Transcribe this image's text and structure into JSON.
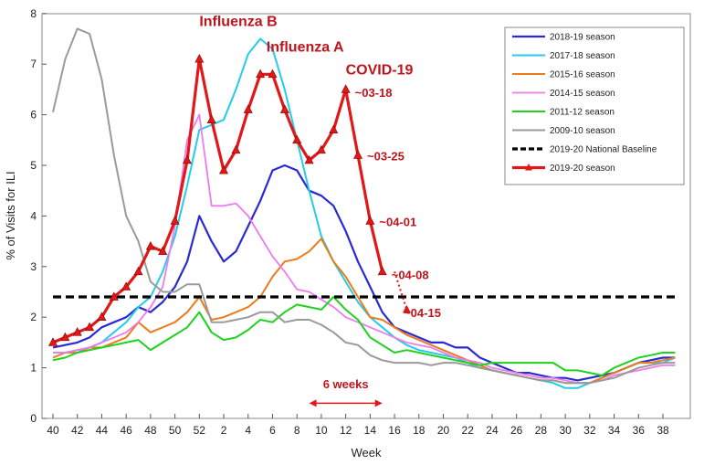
{
  "chart_data": {
    "type": "line",
    "xlabel": "Week",
    "ylabel": "% of Visits for ILI",
    "ylim": [
      0,
      8
    ],
    "y_ticks": [
      "0",
      "1",
      "2",
      "3",
      "4",
      "5",
      "6",
      "7",
      "8"
    ],
    "x_tick_labels": [
      "40",
      "42",
      "44",
      "46",
      "48",
      "50",
      "52",
      "2",
      "4",
      "6",
      "8",
      "10",
      "12",
      "14",
      "16",
      "18",
      "20",
      "22",
      "24",
      "26",
      "28",
      "30",
      "32",
      "34",
      "36",
      "38"
    ],
    "x_categories": [
      40,
      41,
      42,
      43,
      44,
      45,
      46,
      47,
      48,
      49,
      50,
      51,
      52,
      1,
      2,
      3,
      4,
      5,
      6,
      7,
      8,
      9,
      10,
      11,
      12,
      13,
      14,
      15,
      16,
      17,
      18,
      19,
      20,
      21,
      22,
      23,
      24,
      25,
      26,
      27,
      28,
      29,
      30,
      31,
      32,
      33,
      34,
      35,
      36,
      37,
      38,
      39
    ],
    "legend_position": "top-right",
    "grid": false,
    "series": [
      {
        "name": "2018-19 season",
        "color": "#2a2ad2",
        "width": 2.2,
        "dash": "",
        "marker": "none",
        "values": [
          1.4,
          1.45,
          1.5,
          1.6,
          1.8,
          1.9,
          2.0,
          2.2,
          2.1,
          2.3,
          2.6,
          3.1,
          4.0,
          3.5,
          3.1,
          3.3,
          3.8,
          4.3,
          4.9,
          5.0,
          4.9,
          4.5,
          4.4,
          4.2,
          3.7,
          3.1,
          2.6,
          2.1,
          1.8,
          1.7,
          1.6,
          1.5,
          1.5,
          1.4,
          1.4,
          1.2,
          1.1,
          1.0,
          0.9,
          0.9,
          0.85,
          0.8,
          0.8,
          0.75,
          0.8,
          0.85,
          0.9,
          1.0,
          1.1,
          1.15,
          1.2,
          1.2
        ]
      },
      {
        "name": "2017-18 season",
        "color": "#22ccea",
        "width": 2.0,
        "dash": "",
        "marker": "none",
        "values": [
          1.3,
          1.3,
          1.35,
          1.4,
          1.5,
          1.7,
          1.9,
          2.2,
          2.4,
          2.9,
          3.6,
          4.6,
          5.7,
          5.8,
          5.9,
          6.5,
          7.2,
          7.5,
          7.3,
          6.5,
          5.5,
          4.5,
          3.6,
          3.1,
          2.7,
          2.3,
          2.0,
          1.8,
          1.6,
          1.45,
          1.35,
          1.3,
          1.25,
          1.2,
          1.1,
          1.0,
          0.95,
          0.9,
          0.85,
          0.8,
          0.75,
          0.7,
          0.6,
          0.6,
          0.7,
          0.8,
          0.9,
          1.0,
          1.1,
          1.1,
          1.1,
          1.2
        ]
      },
      {
        "name": "2015-16 season",
        "color": "#ee7a1a",
        "width": 2.0,
        "dash": "",
        "marker": "none",
        "values": [
          1.2,
          1.3,
          1.3,
          1.4,
          1.4,
          1.5,
          1.6,
          1.9,
          1.7,
          1.8,
          1.9,
          2.1,
          2.4,
          1.95,
          2.0,
          2.1,
          2.2,
          2.4,
          2.8,
          3.1,
          3.15,
          3.3,
          3.55,
          3.1,
          2.8,
          2.4,
          2.0,
          1.95,
          1.8,
          1.65,
          1.55,
          1.45,
          1.35,
          1.25,
          1.15,
          1.05,
          0.95,
          0.9,
          0.85,
          0.8,
          0.75,
          0.75,
          0.7,
          0.7,
          0.7,
          0.8,
          0.9,
          1.0,
          1.1,
          1.1,
          1.15,
          1.2
        ]
      },
      {
        "name": "2014-15 season",
        "color": "#ee7aee",
        "width": 1.8,
        "dash": "",
        "marker": "none",
        "values": [
          1.3,
          1.3,
          1.35,
          1.4,
          1.5,
          1.6,
          1.7,
          1.9,
          2.2,
          2.6,
          3.8,
          5.5,
          6.0,
          4.2,
          4.2,
          4.25,
          4.0,
          3.6,
          3.2,
          2.9,
          2.55,
          2.5,
          2.35,
          2.2,
          2.0,
          1.9,
          1.8,
          1.7,
          1.6,
          1.5,
          1.45,
          1.4,
          1.3,
          1.2,
          1.15,
          1.1,
          1.0,
          0.95,
          0.9,
          0.85,
          0.8,
          0.8,
          0.75,
          0.7,
          0.7,
          0.75,
          0.85,
          0.9,
          0.95,
          1.0,
          1.05,
          1.05
        ]
      },
      {
        "name": "2011-12 season",
        "color": "#1ed21e",
        "width": 2.0,
        "dash": "",
        "marker": "none",
        "values": [
          1.15,
          1.2,
          1.3,
          1.35,
          1.4,
          1.45,
          1.5,
          1.55,
          1.35,
          1.5,
          1.65,
          1.8,
          2.1,
          1.7,
          1.55,
          1.6,
          1.75,
          1.95,
          1.9,
          2.1,
          2.25,
          2.2,
          2.15,
          2.4,
          2.15,
          1.95,
          1.6,
          1.45,
          1.3,
          1.35,
          1.3,
          1.25,
          1.2,
          1.15,
          1.1,
          1.05,
          1.1,
          1.1,
          1.1,
          1.1,
          1.1,
          1.1,
          0.95,
          0.95,
          0.9,
          0.85,
          1.0,
          1.1,
          1.2,
          1.25,
          1.3,
          1.3
        ]
      },
      {
        "name": "2009-10 season",
        "color": "#9a9a9a",
        "width": 2.0,
        "dash": "",
        "marker": "none",
        "values": [
          6.05,
          7.1,
          7.7,
          7.6,
          6.7,
          5.2,
          4.0,
          3.5,
          2.7,
          2.5,
          2.5,
          2.65,
          2.65,
          1.9,
          1.9,
          1.95,
          2.0,
          2.1,
          2.1,
          1.9,
          1.95,
          1.95,
          1.85,
          1.7,
          1.5,
          1.45,
          1.25,
          1.15,
          1.1,
          1.1,
          1.1,
          1.05,
          1.1,
          1.1,
          1.05,
          1.0,
          0.95,
          0.9,
          0.85,
          0.8,
          0.75,
          0.75,
          0.7,
          0.7,
          0.7,
          0.75,
          0.8,
          0.9,
          1.0,
          1.05,
          1.1,
          1.1
        ]
      },
      {
        "name": "2019-20 National Baseline",
        "color": "#000000",
        "width": 3.2,
        "dash": "9 5",
        "marker": "none",
        "values": [
          2.4,
          2.4,
          2.4,
          2.4,
          2.4,
          2.4,
          2.4,
          2.4,
          2.4,
          2.4,
          2.4,
          2.4,
          2.4,
          2.4,
          2.4,
          2.4,
          2.4,
          2.4,
          2.4,
          2.4,
          2.4,
          2.4,
          2.4,
          2.4,
          2.4,
          2.4,
          2.4,
          2.4,
          2.4,
          2.4,
          2.4,
          2.4,
          2.4,
          2.4,
          2.4,
          2.4,
          2.4,
          2.4,
          2.4,
          2.4,
          2.4,
          2.4,
          2.4,
          2.4,
          2.4,
          2.4,
          2.4,
          2.4,
          2.4,
          2.4,
          2.4,
          2.4
        ]
      },
      {
        "name": "2019-20 season",
        "color": "#e01818",
        "width": 3.2,
        "dash": "",
        "marker": "triangle",
        "values": [
          1.5,
          1.6,
          1.7,
          1.8,
          2.0,
          2.4,
          2.6,
          2.9,
          3.4,
          3.3,
          3.9,
          5.1,
          7.1,
          5.9,
          4.9,
          5.3,
          6.1,
          6.8,
          6.8,
          6.1,
          5.5,
          5.1,
          5.3,
          5.7,
          6.5,
          5.2,
          3.9,
          2.9,
          null,
          null,
          null,
          null,
          null,
          null,
          null,
          null,
          null,
          null,
          null,
          null,
          null,
          null,
          null,
          null,
          null,
          null,
          null,
          null,
          null,
          null,
          null,
          null
        ]
      }
    ],
    "projection": {
      "color": "#e01818",
      "from": {
        "x": 14,
        "y": 2.9
      },
      "to": {
        "x": 15,
        "y": 2.15
      }
    },
    "annotations": [
      {
        "text": "Influenza B",
        "x": 12,
        "y": 7.75,
        "size": 16
      },
      {
        "text": "Influenza A",
        "x": 17.5,
        "y": 7.25,
        "size": 16
      },
      {
        "text": "COVID-19",
        "x": 24,
        "y": 6.8,
        "size": 16
      },
      {
        "text": "~03-18",
        "x": 24.75,
        "y": 6.35,
        "size": 13
      },
      {
        "text": "~03-25",
        "x": 25.75,
        "y": 5.1,
        "size": 13
      },
      {
        "text": "~04-01",
        "x": 26.75,
        "y": 3.8,
        "size": 13
      },
      {
        "text": "~04-08",
        "x": 27.75,
        "y": 2.75,
        "size": 13
      },
      {
        "text": "~04-15",
        "x": 28.75,
        "y": 2.0,
        "size": 13
      }
    ],
    "span_marker": {
      "label": "6 weeks",
      "x_from": 21,
      "x_to": 27,
      "y": 0.3,
      "label_y": 0.6,
      "color": "#e01818"
    }
  }
}
